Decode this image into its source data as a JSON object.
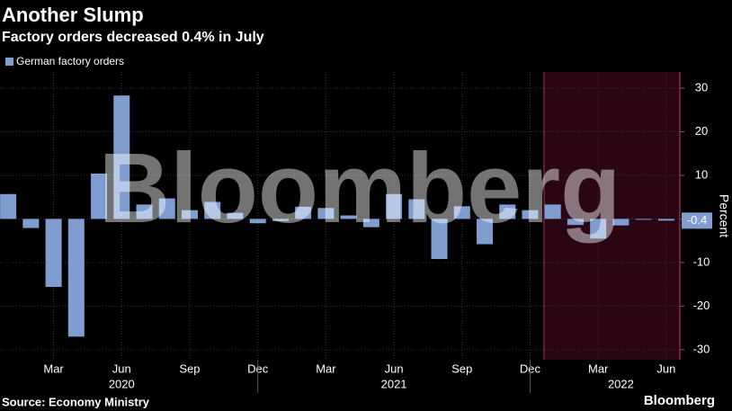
{
  "chart_data": {
    "type": "bar",
    "title": "Another Slump",
    "subtitle": "Factory orders decreased 0.4% in July",
    "source": "Source: Economy Ministry",
    "brand": "Bloomberg",
    "y_label": "Percent",
    "categories": [
      null,
      null,
      "Mar",
      null,
      null,
      "Jun",
      null,
      null,
      "Sep",
      null,
      null,
      "Dec",
      null,
      null,
      "Mar",
      null,
      null,
      "Jun",
      null,
      null,
      "Sep",
      null,
      null,
      "Dec",
      null,
      null,
      "Mar",
      null,
      null,
      "Jun"
    ],
    "year_labels": [
      {
        "index": 5,
        "label": "2020"
      },
      {
        "index": 17,
        "label": "2021"
      },
      {
        "index": 27,
        "label": "2022"
      }
    ],
    "series": [
      {
        "name": "German factory orders",
        "color": "#7f9dcf",
        "values": [
          5.7,
          -2.1,
          -15.6,
          -27,
          10.4,
          28.3,
          3.3,
          4.7,
          2,
          3.9,
          1.4,
          -1,
          -0.5,
          2.8,
          2.5,
          0.8,
          -1.9,
          5.7,
          4.5,
          -9.2,
          2.9,
          -5.8,
          3.3,
          2,
          3.3,
          -1.4,
          -4.5,
          -1.5,
          -0.2,
          -0.4
        ]
      }
    ],
    "ylim": [
      -32.3,
      33.7
    ],
    "yticks": [
      -30,
      -20,
      -10,
      0,
      10,
      20,
      30
    ],
    "grid": true
  }
}
